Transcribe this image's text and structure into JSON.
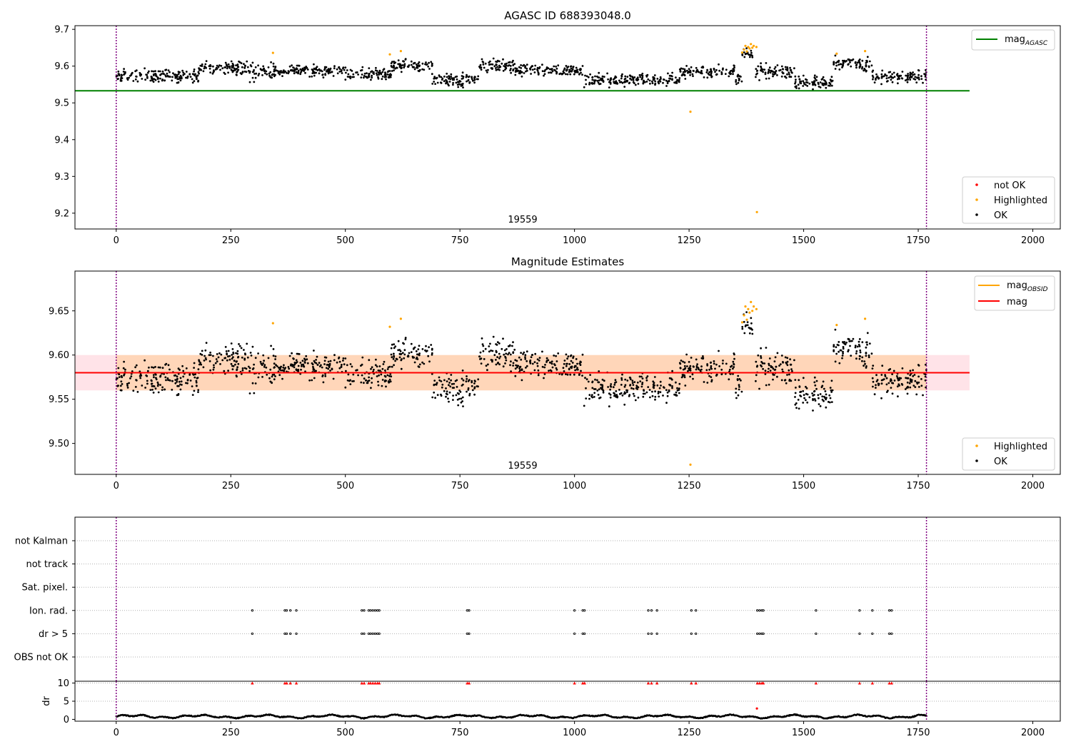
{
  "chart_data": [
    {
      "type": "scatter",
      "title": "AGASC ID 688393048.0",
      "xlim": [
        -90,
        2060
      ],
      "ylim": [
        9.157,
        9.71
      ],
      "xticks": [
        0,
        250,
        500,
        750,
        1000,
        1250,
        1500,
        1750,
        2000
      ],
      "yticks": [
        9.2,
        9.3,
        9.4,
        9.5,
        9.6,
        9.7
      ],
      "ytick_format": 1,
      "obs_boundaries": [
        0,
        1768
      ],
      "obs_label": {
        "text": "19559",
        "x": 884
      },
      "ref_line": {
        "name": "mag_AGASC",
        "value": 9.533,
        "x_range": [
          -90,
          1862
        ],
        "color": "#008000"
      },
      "series": [
        {
          "name": "not OK",
          "color": "#ff0000",
          "points": []
        },
        {
          "name": "Highlighted",
          "color": "#ffa500",
          "points": [
            [
              342,
              9.636
            ],
            [
              597,
              9.632
            ],
            [
              621,
              9.641
            ],
            [
              1253,
              9.476
            ],
            [
              1366,
              9.637
            ],
            [
              1370,
              9.645
            ],
            [
              1373,
              9.655
            ],
            [
              1376,
              9.64
            ],
            [
              1379,
              9.652
            ],
            [
              1382,
              9.648
            ],
            [
              1385,
              9.66
            ],
            [
              1388,
              9.65
            ],
            [
              1391,
              9.655
            ],
            [
              1397,
              9.652
            ],
            [
              1398,
              9.203
            ],
            [
              1572,
              9.634
            ],
            [
              1634,
              9.641
            ]
          ]
        },
        {
          "name": "OK",
          "color": "#000000",
          "segments": [
            [
              0,
              180,
              9.572,
              0.012
            ],
            [
              180,
              290,
              9.595,
              0.013
            ],
            [
              290,
              350,
              9.585,
              0.02
            ],
            [
              350,
              500,
              9.588,
              0.01
            ],
            [
              500,
              600,
              9.578,
              0.012
            ],
            [
              600,
              690,
              9.6,
              0.013
            ],
            [
              690,
              790,
              9.562,
              0.012
            ],
            [
              790,
              870,
              9.6,
              0.016
            ],
            [
              870,
              1020,
              9.588,
              0.012
            ],
            [
              1020,
              1230,
              9.562,
              0.012
            ],
            [
              1230,
              1350,
              9.585,
              0.012
            ],
            [
              1350,
              1365,
              9.565,
              0.012
            ],
            [
              1365,
              1390,
              9.633,
              0.008
            ],
            [
              1390,
              1480,
              9.585,
              0.014
            ],
            [
              1480,
              1565,
              9.556,
              0.013
            ],
            [
              1565,
              1650,
              9.605,
              0.014
            ],
            [
              1650,
              1768,
              9.57,
              0.012
            ]
          ]
        }
      ],
      "legend": {
        "upper-right": [
          "mag_AGASC"
        ],
        "lower-right": [
          "not OK",
          "Highlighted",
          "OK"
        ]
      }
    },
    {
      "type": "scatter",
      "title": "Magnitude Estimates",
      "xlim": [
        -90,
        2060
      ],
      "ylim": [
        9.465,
        9.695
      ],
      "xticks": [
        0,
        250,
        500,
        750,
        1000,
        1250,
        1500,
        1750,
        2000
      ],
      "yticks": [
        9.5,
        9.55,
        9.6,
        9.65
      ],
      "ytick_format": 2,
      "obs_boundaries": [
        0,
        1768
      ],
      "obs_label": {
        "text": "19559",
        "x": 884
      },
      "bands": [
        {
          "y_low": 9.56,
          "y_high": 9.6,
          "x_range": [
            -90,
            1862
          ],
          "color": "#ffc0cb",
          "opacity": 0.45
        },
        {
          "y_low": 9.56,
          "y_high": 9.6,
          "x_range": [
            0,
            1768
          ],
          "color": "#ffa500",
          "opacity": 0.2
        }
      ],
      "lines": [
        {
          "name": "mag",
          "value": 9.58,
          "x_range": [
            -90,
            1862
          ],
          "color": "#ff0000"
        }
      ],
      "series": [
        {
          "name": "Highlighted",
          "color": "#ffa500",
          "points": [
            [
              342,
              9.636
            ],
            [
              597,
              9.632
            ],
            [
              621,
              9.641
            ],
            [
              1253,
              9.476
            ],
            [
              1366,
              9.637
            ],
            [
              1370,
              9.645
            ],
            [
              1373,
              9.655
            ],
            [
              1376,
              9.64
            ],
            [
              1379,
              9.652
            ],
            [
              1382,
              9.648
            ],
            [
              1385,
              9.66
            ],
            [
              1388,
              9.65
            ],
            [
              1391,
              9.655
            ],
            [
              1397,
              9.652
            ],
            [
              1572,
              9.634
            ],
            [
              1634,
              9.641
            ]
          ]
        },
        {
          "name": "OK",
          "color": "#000000",
          "segments": [
            [
              0,
              180,
              9.572,
              0.012
            ],
            [
              180,
              290,
              9.595,
              0.013
            ],
            [
              290,
              350,
              9.585,
              0.02
            ],
            [
              350,
              500,
              9.588,
              0.01
            ],
            [
              500,
              600,
              9.578,
              0.012
            ],
            [
              600,
              690,
              9.6,
              0.013
            ],
            [
              690,
              790,
              9.562,
              0.012
            ],
            [
              790,
              870,
              9.6,
              0.016
            ],
            [
              870,
              1020,
              9.588,
              0.012
            ],
            [
              1020,
              1230,
              9.562,
              0.012
            ],
            [
              1230,
              1350,
              9.585,
              0.012
            ],
            [
              1350,
              1365,
              9.565,
              0.012
            ],
            [
              1365,
              1390,
              9.633,
              0.008
            ],
            [
              1390,
              1480,
              9.585,
              0.014
            ],
            [
              1480,
              1565,
              9.556,
              0.013
            ],
            [
              1565,
              1650,
              9.605,
              0.014
            ],
            [
              1650,
              1768,
              9.57,
              0.012
            ]
          ]
        }
      ],
      "legend": {
        "upper-right": [
          "mag_OBSID",
          "mag"
        ],
        "lower-right": [
          "Highlighted",
          "OK"
        ]
      }
    },
    {
      "type": "scatter",
      "title": "",
      "xlim": [
        -90,
        2060
      ],
      "categories": [
        "OBS not OK",
        "dr > 5",
        "Ion. rad.",
        "Sat. pixel.",
        "not track",
        "not Kalman"
      ],
      "obs_boundaries": [
        0,
        1768
      ],
      "flag_times": [
        297,
        368,
        372,
        380,
        393,
        536,
        541,
        551,
        555,
        560,
        565,
        570,
        574,
        766,
        770,
        1000,
        1018,
        1022,
        1161,
        1168,
        1180,
        1255,
        1265,
        1399,
        1404,
        1409,
        1412,
        1527,
        1622,
        1650,
        1687,
        1692
      ],
      "flags": {
        "dr > 5": "flag_times",
        "Ion. rad.": "flag_times"
      }
    },
    {
      "type": "scatter",
      "title": "",
      "ylabel": "dr",
      "xlim": [
        -90,
        2060
      ],
      "ylim": [
        -0.5,
        10.5
      ],
      "xticks": [
        0,
        250,
        500,
        750,
        1000,
        1250,
        1500,
        1750,
        2000
      ],
      "yticks": [
        0,
        5,
        10
      ],
      "obs_boundaries": [
        0,
        1768
      ],
      "baseline_series": {
        "name": "dr",
        "color": "#000000",
        "x_range": [
          0,
          1768
        ],
        "mean": 0.8,
        "amplitude": 0.5
      },
      "outliers": [
        [
          1398,
          3
        ]
      ],
      "capped": {
        "value": 10,
        "color": "#ff0000",
        "times_ref": "flag_times"
      }
    }
  ]
}
